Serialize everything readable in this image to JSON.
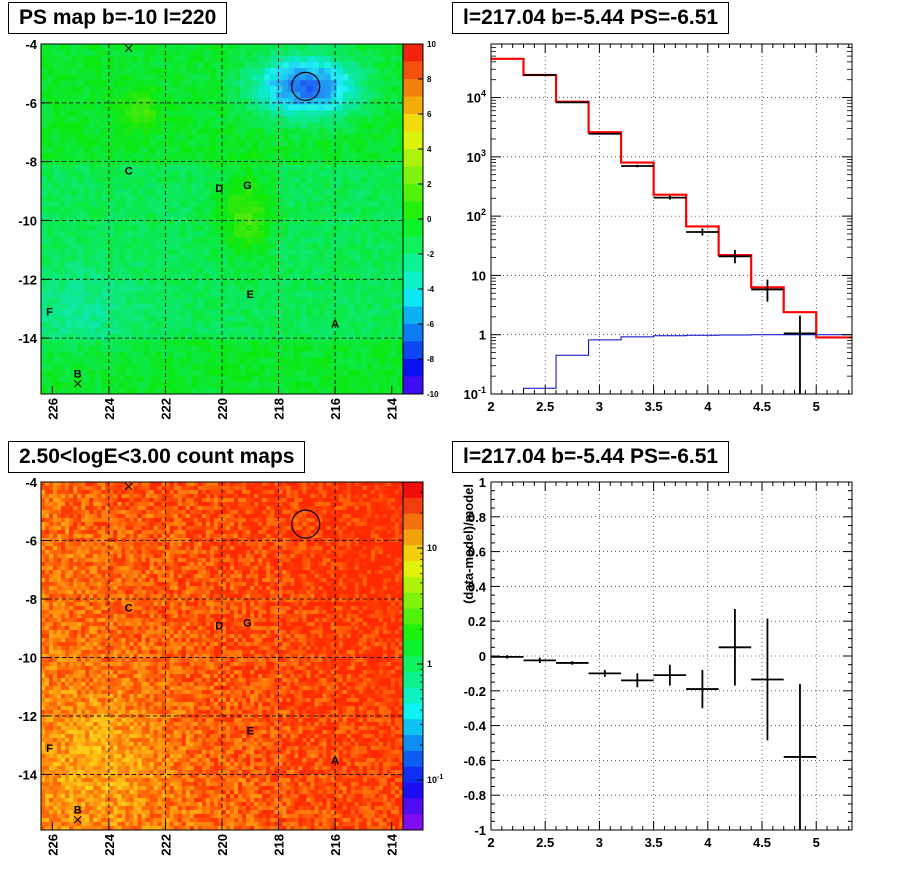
{
  "chart_data": [
    {
      "type": "heatmap",
      "title": "PS map b=-10 l=220",
      "xticks": [
        "226",
        "224",
        "222",
        "220",
        "218",
        "216",
        "214"
      ],
      "yticks": [
        "-4",
        "-6",
        "-8",
        "-10",
        "-12",
        "-14"
      ],
      "xlim": [
        226.4,
        213.6
      ],
      "ylim": [
        -15.9,
        -4.0
      ],
      "colorbar_ticks": [
        "10",
        "8",
        "6",
        "4",
        "2",
        "0",
        "-2",
        "-4",
        "-6",
        "-8",
        "-10"
      ],
      "colorbar_range": [
        -10,
        10
      ],
      "markers": [
        {
          "label": "A",
          "l": 216.0,
          "b": -13.5
        },
        {
          "label": "B",
          "l": 225.1,
          "b": -15.2
        },
        {
          "label": "C",
          "l": 223.3,
          "b": -8.3
        },
        {
          "label": "D",
          "l": 220.1,
          "b": -8.9
        },
        {
          "label": "E",
          "l": 219.0,
          "b": -12.5
        },
        {
          "label": "F",
          "l": 226.1,
          "b": -13.1
        },
        {
          "label": "G",
          "l": 219.1,
          "b": -8.8
        }
      ],
      "crosses": [
        {
          "l": 223.3,
          "b": -4.15
        },
        {
          "l": 225.1,
          "b": -15.55
        }
      ],
      "circle": {
        "l": 217.04,
        "b": -5.44
      }
    },
    {
      "type": "line",
      "title": "l=217.04 b=-5.44 PS=-6.51",
      "log_y": true,
      "xticks": [
        "2",
        "2.5",
        "3",
        "3.5",
        "4",
        "4.5",
        "5"
      ],
      "yticks": [
        "10^-1",
        "1",
        "10",
        "10^2",
        "10^3",
        "10^4"
      ],
      "xlim": [
        2.0,
        5.33
      ],
      "ylim": [
        0.1,
        80000
      ],
      "series": [
        {
          "color": "#ff0000",
          "edges": [
            2.0,
            2.3,
            2.6,
            2.9,
            3.2,
            3.5,
            3.8,
            4.1,
            4.4,
            4.7,
            5.0,
            5.33
          ],
          "values": [
            45000,
            24000,
            8500,
            2600,
            800,
            230,
            67,
            22,
            6.3,
            2.4,
            0.9
          ]
        },
        {
          "color": "#0000c8",
          "edges": [
            2.0,
            2.3,
            2.6,
            2.9,
            3.2,
            3.5,
            3.8,
            4.1,
            4.4,
            4.7,
            5.0,
            5.33
          ],
          "values": [
            0.1,
            0.125,
            0.45,
            0.82,
            0.92,
            0.96,
            0.98,
            0.99,
            1.0,
            1.0,
            1.0
          ]
        },
        {
          "color": "#000000",
          "points": [
            {
              "x": 2.45,
              "y": 24000,
              "dx": 0.15,
              "lo": 23500,
              "hi": 24500
            },
            {
              "x": 2.75,
              "y": 8300,
              "dx": 0.15,
              "lo": 8100,
              "hi": 8500
            },
            {
              "x": 3.05,
              "y": 2450,
              "dx": 0.15,
              "lo": 2380,
              "hi": 2520
            },
            {
              "x": 3.35,
              "y": 700,
              "dx": 0.15,
              "lo": 665,
              "hi": 735
            },
            {
              "x": 3.65,
              "y": 205,
              "dx": 0.15,
              "lo": 190,
              "hi": 222
            },
            {
              "x": 3.95,
              "y": 54,
              "dx": 0.15,
              "lo": 47,
              "hi": 62
            },
            {
              "x": 4.25,
              "y": 21,
              "dx": 0.15,
              "lo": 16,
              "hi": 27
            },
            {
              "x": 4.55,
              "y": 5.8,
              "dx": 0.15,
              "lo": 3.6,
              "hi": 8.5
            },
            {
              "x": 4.85,
              "y": 1.05,
              "dx": 0.15,
              "lo": 0.1,
              "hi": 2.1
            }
          ]
        }
      ]
    },
    {
      "type": "heatmap",
      "title": "2.50<logE<3.00 count maps",
      "xticks": [
        "226",
        "224",
        "222",
        "220",
        "218",
        "216",
        "214"
      ],
      "yticks": [
        "-4",
        "-6",
        "-8",
        "-10",
        "-12",
        "-14"
      ],
      "xlim": [
        226.4,
        213.6
      ],
      "ylim": [
        -15.9,
        -4.0
      ],
      "colorbar_ticks": [
        "10",
        "1",
        "10^-1"
      ],
      "markers": [
        {
          "label": "A",
          "l": 216.0,
          "b": -13.5
        },
        {
          "label": "B",
          "l": 225.1,
          "b": -15.2
        },
        {
          "label": "C",
          "l": 223.3,
          "b": -8.3
        },
        {
          "label": "D",
          "l": 220.1,
          "b": -8.9
        },
        {
          "label": "E",
          "l": 219.0,
          "b": -12.5
        },
        {
          "label": "F",
          "l": 226.1,
          "b": -13.1
        },
        {
          "label": "G",
          "l": 219.1,
          "b": -8.8
        }
      ],
      "crosses": [
        {
          "l": 223.3,
          "b": -4.15
        },
        {
          "l": 225.1,
          "b": -15.55
        }
      ],
      "circle": {
        "l": 217.04,
        "b": -5.44
      }
    },
    {
      "type": "scatter",
      "title": "l=217.04 b=-5.44 PS=-6.51",
      "ylabel": "(data-model)/model",
      "xticks": [
        "2",
        "2.5",
        "3",
        "3.5",
        "4",
        "4.5",
        "5"
      ],
      "yticks": [
        "-1",
        "-0.8",
        "-0.6",
        "-0.4",
        "-0.2",
        "0",
        "0.2",
        "0.4",
        "0.6",
        "0.8",
        "1"
      ],
      "xlim": [
        2.0,
        5.33
      ],
      "ylim": [
        -1.0,
        1.0
      ],
      "points": [
        {
          "x": 2.15,
          "y": -0.005,
          "dx": 0.15,
          "err": 0.01
        },
        {
          "x": 2.45,
          "y": -0.025,
          "dx": 0.15,
          "err": 0.015
        },
        {
          "x": 2.75,
          "y": -0.04,
          "dx": 0.15,
          "err": 0.01
        },
        {
          "x": 3.05,
          "y": -0.1,
          "dx": 0.15,
          "err": 0.02
        },
        {
          "x": 3.35,
          "y": -0.14,
          "dx": 0.15,
          "err": 0.04
        },
        {
          "x": 3.65,
          "y": -0.11,
          "dx": 0.15,
          "err": 0.06
        },
        {
          "x": 3.95,
          "y": -0.19,
          "dx": 0.15,
          "err": 0.11
        },
        {
          "x": 4.25,
          "y": 0.05,
          "dx": 0.15,
          "err": 0.22
        },
        {
          "x": 4.55,
          "y": -0.135,
          "dx": 0.15,
          "err": 0.35
        },
        {
          "x": 4.85,
          "y": -0.58,
          "dx": 0.15,
          "err": 0.42
        }
      ]
    }
  ]
}
